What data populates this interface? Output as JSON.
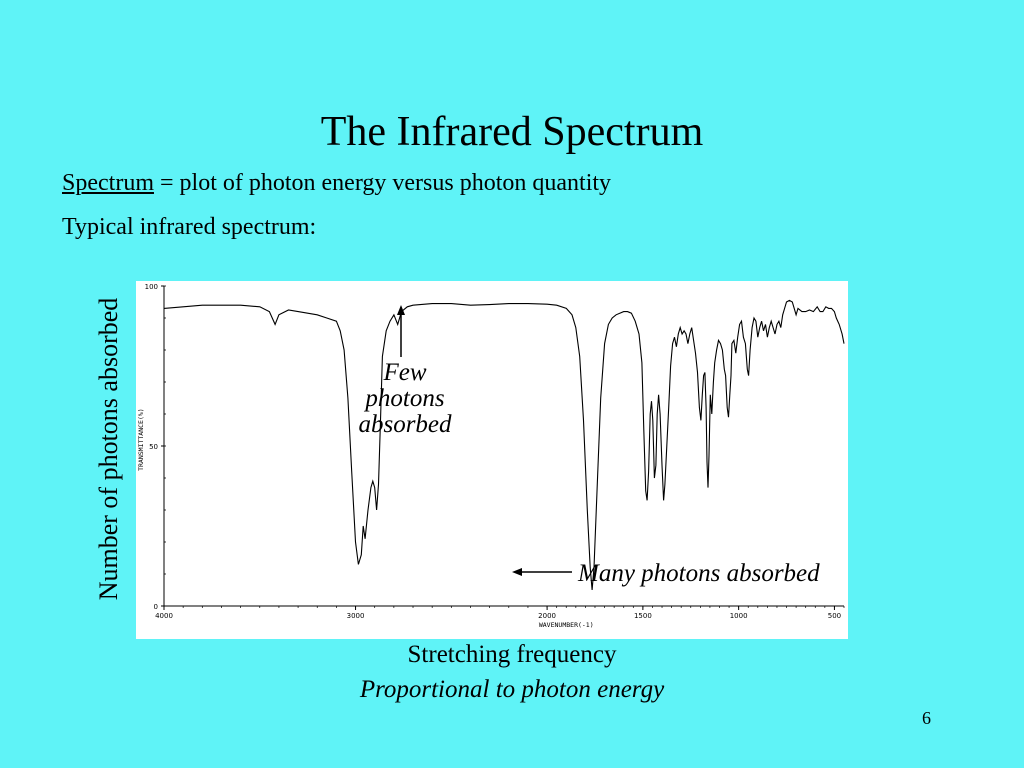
{
  "slide": {
    "title": "The Infrared Spectrum",
    "definition_term": "Spectrum",
    "definition_text": " = plot of photon energy versus photon quantity",
    "intro": "Typical infrared spectrum:",
    "y_annotation": "Number of photons absorbed",
    "few_label_lines": [
      "Few",
      "photons",
      "absorbed"
    ],
    "many_label": "Many photons absorbed",
    "x_annotation": "Stretching frequency",
    "x_subannotation": "Proportional to photon energy",
    "page_number": "6"
  },
  "colors": {
    "background": "#5ff3f7",
    "plot": "#000000"
  },
  "chart_data": {
    "type": "line",
    "xlabel": "WAVENUMBER(-1)",
    "ylabel": "TRANSMITTANCE(%)",
    "xlim": [
      4000,
      450
    ],
    "ylim": [
      0,
      100
    ],
    "x_reversed": true,
    "x_ticks": [
      "4000",
      "3000",
      "2000",
      "1500",
      "1000",
      "500"
    ],
    "y_ticks": [
      "100",
      "50",
      "0"
    ],
    "series": [
      {
        "points": [
          [
            4000,
            93
          ],
          [
            3800,
            94
          ],
          [
            3600,
            94
          ],
          [
            3500,
            93.5
          ],
          [
            3450,
            92
          ],
          [
            3420,
            88
          ],
          [
            3400,
            91
          ],
          [
            3350,
            92.5
          ],
          [
            3300,
            92
          ],
          [
            3200,
            91
          ],
          [
            3150,
            90
          ],
          [
            3100,
            89
          ],
          [
            3080,
            86
          ],
          [
            3060,
            80
          ],
          [
            3040,
            65
          ],
          [
            3020,
            42
          ],
          [
            3000,
            20
          ],
          [
            2985,
            13
          ],
          [
            2970,
            16
          ],
          [
            2960,
            25
          ],
          [
            2950,
            21
          ],
          [
            2935,
            30
          ],
          [
            2920,
            37
          ],
          [
            2910,
            39
          ],
          [
            2900,
            37
          ],
          [
            2890,
            30
          ],
          [
            2880,
            38
          ],
          [
            2870,
            58
          ],
          [
            2860,
            78
          ],
          [
            2840,
            86
          ],
          [
            2820,
            89
          ],
          [
            2800,
            91
          ],
          [
            2780,
            88
          ],
          [
            2760,
            92
          ],
          [
            2730,
            93.5
          ],
          [
            2700,
            94
          ],
          [
            2600,
            94.5
          ],
          [
            2500,
            94.5
          ],
          [
            2400,
            94
          ],
          [
            2300,
            94.2
          ],
          [
            2200,
            94.5
          ],
          [
            2100,
            94.5
          ],
          [
            2000,
            94.3
          ],
          [
            1950,
            94
          ],
          [
            1900,
            93
          ],
          [
            1870,
            91
          ],
          [
            1850,
            87
          ],
          [
            1830,
            78
          ],
          [
            1810,
            58
          ],
          [
            1790,
            30
          ],
          [
            1775,
            12
          ],
          [
            1765,
            5
          ],
          [
            1755,
            12
          ],
          [
            1740,
            35
          ],
          [
            1720,
            65
          ],
          [
            1700,
            82
          ],
          [
            1680,
            88
          ],
          [
            1660,
            90
          ],
          [
            1640,
            91
          ],
          [
            1600,
            92
          ],
          [
            1580,
            92
          ],
          [
            1560,
            91.5
          ],
          [
            1540,
            89
          ],
          [
            1520,
            85
          ],
          [
            1505,
            76
          ],
          [
            1495,
            55
          ],
          [
            1485,
            36
          ],
          [
            1478,
            33
          ],
          [
            1470,
            42
          ],
          [
            1462,
            60
          ],
          [
            1455,
            64
          ],
          [
            1448,
            58
          ],
          [
            1440,
            40
          ],
          [
            1432,
            44
          ],
          [
            1425,
            60
          ],
          [
            1418,
            66
          ],
          [
            1410,
            60
          ],
          [
            1400,
            44
          ],
          [
            1392,
            33
          ],
          [
            1385,
            38
          ],
          [
            1375,
            50
          ],
          [
            1365,
            62
          ],
          [
            1355,
            75
          ],
          [
            1345,
            82
          ],
          [
            1335,
            84
          ],
          [
            1325,
            81
          ],
          [
            1315,
            85
          ],
          [
            1305,
            87
          ],
          [
            1295,
            85
          ],
          [
            1285,
            86
          ],
          [
            1275,
            85
          ],
          [
            1265,
            82
          ],
          [
            1255,
            85
          ],
          [
            1245,
            87
          ],
          [
            1235,
            83
          ],
          [
            1225,
            79
          ],
          [
            1215,
            73
          ],
          [
            1205,
            62
          ],
          [
            1197,
            58
          ],
          [
            1190,
            66
          ],
          [
            1183,
            72
          ],
          [
            1176,
            73
          ],
          [
            1170,
            62
          ],
          [
            1165,
            45
          ],
          [
            1160,
            37
          ],
          [
            1155,
            47
          ],
          [
            1148,
            66
          ],
          [
            1140,
            60
          ],
          [
            1132,
            70
          ],
          [
            1125,
            76
          ],
          [
            1115,
            80
          ],
          [
            1105,
            83
          ],
          [
            1095,
            82
          ],
          [
            1085,
            80
          ],
          [
            1075,
            74
          ],
          [
            1068,
            72
          ],
          [
            1060,
            62
          ],
          [
            1053,
            59
          ],
          [
            1046,
            66
          ],
          [
            1040,
            72
          ],
          [
            1035,
            82
          ],
          [
            1025,
            83
          ],
          [
            1015,
            79
          ],
          [
            1005,
            84
          ],
          [
            995,
            88
          ],
          [
            985,
            89
          ],
          [
            975,
            84
          ],
          [
            965,
            82
          ],
          [
            955,
            74
          ],
          [
            948,
            72
          ],
          [
            940,
            80
          ],
          [
            930,
            87
          ],
          [
            920,
            90
          ],
          [
            910,
            89
          ],
          [
            900,
            84
          ],
          [
            890,
            87
          ],
          [
            880,
            89
          ],
          [
            870,
            86
          ],
          [
            860,
            88
          ],
          [
            850,
            84
          ],
          [
            840,
            87
          ],
          [
            830,
            89
          ],
          [
            820,
            87
          ],
          [
            810,
            85
          ],
          [
            800,
            88
          ],
          [
            790,
            89
          ],
          [
            780,
            87
          ],
          [
            770,
            91
          ],
          [
            760,
            93
          ],
          [
            750,
            95
          ],
          [
            735,
            95.5
          ],
          [
            720,
            95
          ],
          [
            700,
            91
          ],
          [
            690,
            93
          ],
          [
            670,
            92
          ],
          [
            650,
            92
          ],
          [
            630,
            92.5
          ],
          [
            610,
            92
          ],
          [
            590,
            93.5
          ],
          [
            575,
            92
          ],
          [
            560,
            92
          ],
          [
            545,
            93.5
          ],
          [
            530,
            93
          ],
          [
            515,
            93
          ],
          [
            500,
            92
          ],
          [
            490,
            90
          ],
          [
            475,
            88
          ],
          [
            460,
            85
          ],
          [
            450,
            82
          ]
        ]
      }
    ]
  }
}
